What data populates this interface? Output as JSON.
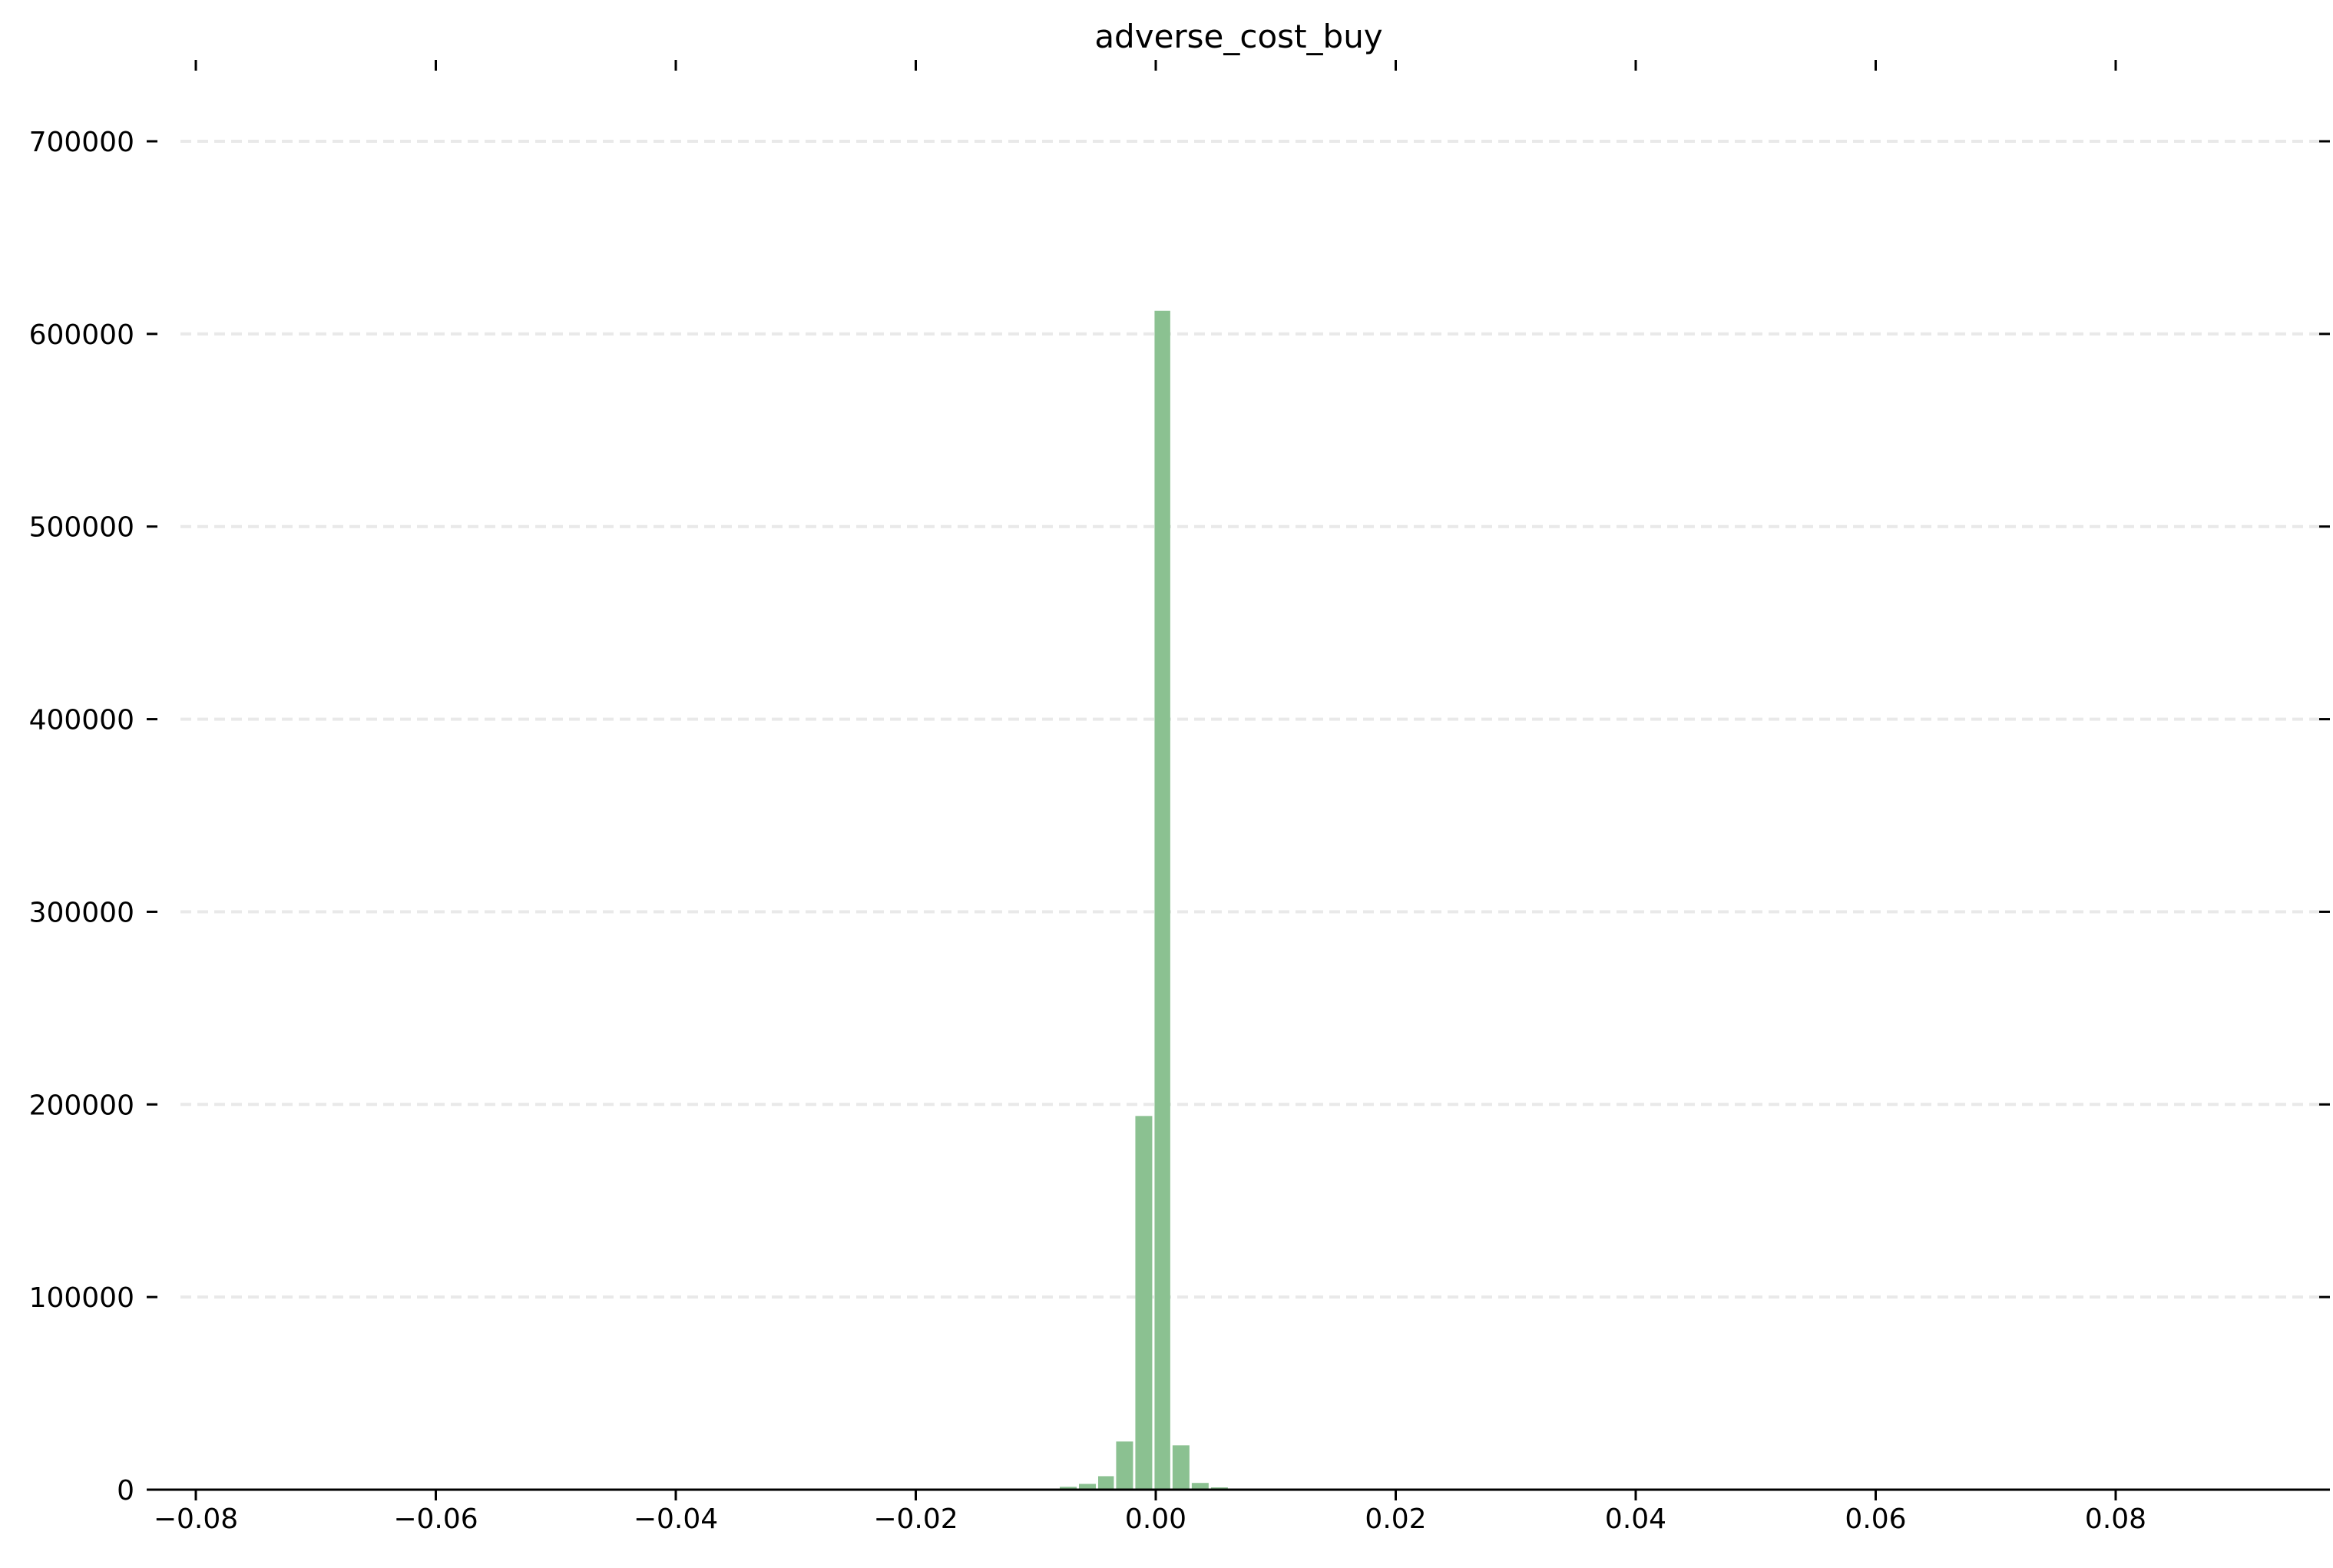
{
  "chart_data": {
    "type": "bar",
    "subtype": "histogram",
    "title": "adverse_cost_buy",
    "xlabel": "",
    "ylabel": "",
    "xlim": [
      -0.082,
      0.096
    ],
    "ylim": [
      0,
      700000
    ],
    "x_ticks": [
      -0.08,
      -0.06,
      -0.04,
      -0.02,
      0.0,
      0.02,
      0.04,
      0.06,
      0.08
    ],
    "x_tick_labels": [
      "−0.08",
      "−0.06",
      "−0.04",
      "−0.02",
      "0.00",
      "0.02",
      "0.04",
      "0.06",
      "0.08"
    ],
    "y_ticks": [
      0,
      100000,
      200000,
      300000,
      400000,
      500000,
      600000,
      700000
    ],
    "y_tick_labels": [
      "0",
      "100000",
      "200000",
      "300000",
      "400000",
      "500000",
      "600000",
      "700000"
    ],
    "grid": "horizontal dashed",
    "legend": "none",
    "bar_color": "#8bc191",
    "bins": [
      {
        "x0": -0.0095,
        "x1": -0.008,
        "count": 400
      },
      {
        "x0": -0.008,
        "x1": -0.0064,
        "count": 1500
      },
      {
        "x0": -0.0064,
        "x1": -0.0048,
        "count": 3000
      },
      {
        "x0": -0.0048,
        "x1": -0.0033,
        "count": 7000
      },
      {
        "x0": -0.0033,
        "x1": -0.0017,
        "count": 25000
      },
      {
        "x0": -0.0017,
        "x1": -0.0001,
        "count": 194000
      },
      {
        "x0": -0.0001,
        "x1": 0.0014,
        "count": 612000
      },
      {
        "x0": 0.0014,
        "x1": 0.003,
        "count": 23000
      },
      {
        "x0": 0.003,
        "x1": 0.0046,
        "count": 3500
      },
      {
        "x0": 0.0046,
        "x1": 0.0062,
        "count": 1200
      },
      {
        "x0": 0.0062,
        "x1": 0.0077,
        "count": 400
      }
    ]
  }
}
